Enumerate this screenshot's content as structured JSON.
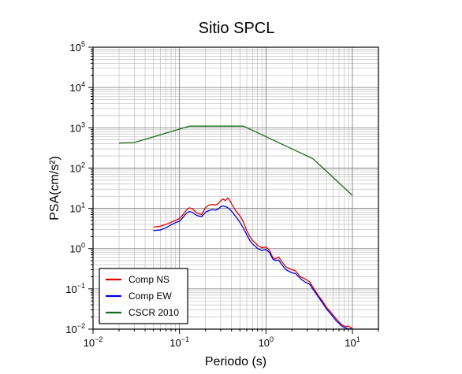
{
  "chart_data": {
    "type": "line",
    "title": "Sitio SPCL",
    "xlabel": "Periodo (s)",
    "ylabel": "PSA(cm/s²)",
    "xscale": "log",
    "yscale": "log",
    "xlim": [
      0.01,
      20
    ],
    "ylim": [
      0.01,
      100000
    ],
    "grid": true,
    "legend_placement": "bottom-left",
    "x_ticks": [
      {
        "base": "10",
        "exp": "−2",
        "value": 0.01
      },
      {
        "base": "10",
        "exp": "−1",
        "value": 0.1
      },
      {
        "base": "10",
        "exp": "0",
        "value": 1
      },
      {
        "base": "10",
        "exp": "1",
        "value": 10
      }
    ],
    "y_ticks": [
      {
        "base": "10",
        "exp": "−2",
        "value": 0.01
      },
      {
        "base": "10",
        "exp": "−1",
        "value": 0.1
      },
      {
        "base": "10",
        "exp": "0",
        "value": 1
      },
      {
        "base": "10",
        "exp": "1",
        "value": 10
      },
      {
        "base": "10",
        "exp": "2",
        "value": 100
      },
      {
        "base": "10",
        "exp": "3",
        "value": 1000
      },
      {
        "base": "10",
        "exp": "4",
        "value": 10000
      },
      {
        "base": "10",
        "exp": "5",
        "value": 100000
      }
    ],
    "series": [
      {
        "name": "Comp NS",
        "color": "#e00000",
        "points": [
          [
            0.05,
            3.4
          ],
          [
            0.06,
            3.6
          ],
          [
            0.07,
            4.0
          ],
          [
            0.08,
            4.5
          ],
          [
            0.09,
            5.0
          ],
          [
            0.1,
            5.6
          ],
          [
            0.11,
            7.0
          ],
          [
            0.12,
            9.0
          ],
          [
            0.13,
            10.3
          ],
          [
            0.14,
            9.8
          ],
          [
            0.15,
            8.6
          ],
          [
            0.16,
            7.6
          ],
          [
            0.17,
            7.3
          ],
          [
            0.18,
            7.0
          ],
          [
            0.19,
            8.5
          ],
          [
            0.2,
            10.5
          ],
          [
            0.22,
            12.0
          ],
          [
            0.24,
            12.5
          ],
          [
            0.26,
            12.0
          ],
          [
            0.28,
            13.0
          ],
          [
            0.3,
            15.5
          ],
          [
            0.32,
            17.0
          ],
          [
            0.34,
            15.5
          ],
          [
            0.36,
            18.0
          ],
          [
            0.38,
            16.0
          ],
          [
            0.4,
            13.0
          ],
          [
            0.43,
            10.0
          ],
          [
            0.46,
            8.0
          ],
          [
            0.5,
            6.5
          ],
          [
            0.55,
            4.5
          ],
          [
            0.6,
            2.8
          ],
          [
            0.65,
            2.0
          ],
          [
            0.7,
            1.6
          ],
          [
            0.75,
            1.4
          ],
          [
            0.8,
            1.2
          ],
          [
            0.9,
            1.05
          ],
          [
            1.0,
            1.1
          ],
          [
            1.1,
            0.9
          ],
          [
            1.2,
            0.6
          ],
          [
            1.3,
            0.55
          ],
          [
            1.4,
            0.62
          ],
          [
            1.5,
            0.5
          ],
          [
            1.7,
            0.35
          ],
          [
            2.0,
            0.3
          ],
          [
            2.2,
            0.28
          ],
          [
            2.5,
            0.2
          ],
          [
            2.8,
            0.18
          ],
          [
            3.2,
            0.15
          ],
          [
            3.6,
            0.1
          ],
          [
            4.0,
            0.07
          ],
          [
            4.5,
            0.05
          ],
          [
            5.0,
            0.035
          ],
          [
            5.5,
            0.028
          ],
          [
            6.0,
            0.022
          ],
          [
            6.5,
            0.018
          ],
          [
            7.0,
            0.015
          ],
          [
            7.5,
            0.013
          ],
          [
            8.0,
            0.012
          ],
          [
            8.5,
            0.0115
          ],
          [
            9.0,
            0.012
          ],
          [
            9.5,
            0.011
          ],
          [
            10.0,
            0.0105
          ]
        ]
      },
      {
        "name": "Comp EW",
        "color": "#0000e0",
        "points": [
          [
            0.05,
            2.8
          ],
          [
            0.06,
            2.9
          ],
          [
            0.07,
            3.3
          ],
          [
            0.08,
            3.9
          ],
          [
            0.09,
            4.4
          ],
          [
            0.1,
            4.8
          ],
          [
            0.11,
            6.0
          ],
          [
            0.12,
            7.5
          ],
          [
            0.13,
            8.3
          ],
          [
            0.14,
            8.0
          ],
          [
            0.15,
            7.2
          ],
          [
            0.16,
            6.6
          ],
          [
            0.17,
            6.4
          ],
          [
            0.18,
            6.2
          ],
          [
            0.19,
            7.0
          ],
          [
            0.2,
            8.0
          ],
          [
            0.22,
            8.8
          ],
          [
            0.24,
            9.2
          ],
          [
            0.26,
            9.0
          ],
          [
            0.28,
            9.5
          ],
          [
            0.3,
            11.0
          ],
          [
            0.32,
            11.5
          ],
          [
            0.34,
            11.0
          ],
          [
            0.36,
            10.5
          ],
          [
            0.38,
            9.5
          ],
          [
            0.4,
            8.5
          ],
          [
            0.43,
            7.0
          ],
          [
            0.46,
            5.8
          ],
          [
            0.5,
            4.5
          ],
          [
            0.55,
            3.2
          ],
          [
            0.6,
            2.2
          ],
          [
            0.65,
            1.6
          ],
          [
            0.7,
            1.3
          ],
          [
            0.75,
            1.15
          ],
          [
            0.8,
            1.0
          ],
          [
            0.9,
            0.9
          ],
          [
            1.0,
            0.95
          ],
          [
            1.1,
            0.8
          ],
          [
            1.2,
            0.55
          ],
          [
            1.3,
            0.5
          ],
          [
            1.4,
            0.52
          ],
          [
            1.5,
            0.42
          ],
          [
            1.7,
            0.3
          ],
          [
            2.0,
            0.25
          ],
          [
            2.2,
            0.24
          ],
          [
            2.5,
            0.18
          ],
          [
            2.8,
            0.15
          ],
          [
            3.2,
            0.13
          ],
          [
            3.6,
            0.09
          ],
          [
            4.0,
            0.065
          ],
          [
            4.5,
            0.045
          ],
          [
            5.0,
            0.032
          ],
          [
            5.5,
            0.025
          ],
          [
            6.0,
            0.02
          ],
          [
            6.5,
            0.016
          ],
          [
            7.0,
            0.014
          ],
          [
            7.5,
            0.012
          ],
          [
            8.0,
            0.011
          ],
          [
            8.5,
            0.0105
          ],
          [
            9.0,
            0.0102
          ],
          [
            9.5,
            0.0101
          ],
          [
            10.0,
            0.01
          ]
        ]
      },
      {
        "name": "CSCR 2010",
        "color": "#1a6b1a",
        "points": [
          [
            0.02,
            420
          ],
          [
            0.03,
            430
          ],
          [
            0.13,
            1100
          ],
          [
            0.55,
            1100
          ],
          [
            3.5,
            170
          ],
          [
            10.0,
            21
          ]
        ]
      }
    ]
  }
}
